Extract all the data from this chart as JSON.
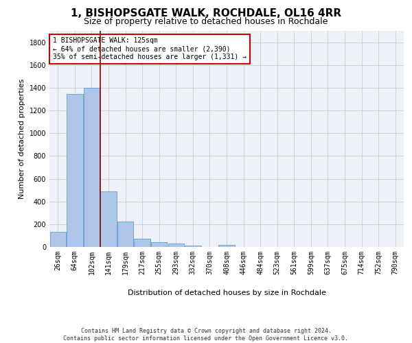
{
  "title": "1, BISHOPSGATE WALK, ROCHDALE, OL16 4RR",
  "subtitle": "Size of property relative to detached houses in Rochdale",
  "xlabel": "Distribution of detached houses by size in Rochdale",
  "ylabel": "Number of detached properties",
  "bar_color": "#aec6e8",
  "bar_edge_color": "#5a9fd4",
  "background_color": "#ffffff",
  "plot_bg_color": "#eef2f8",
  "grid_color": "#cccccc",
  "annotation_box_color": "#cc0000",
  "vline_color": "#8b0000",
  "categories": [
    "26sqm",
    "64sqm",
    "102sqm",
    "141sqm",
    "179sqm",
    "217sqm",
    "255sqm",
    "293sqm",
    "332sqm",
    "370sqm",
    "408sqm",
    "446sqm",
    "484sqm",
    "523sqm",
    "561sqm",
    "599sqm",
    "637sqm",
    "675sqm",
    "714sqm",
    "752sqm",
    "790sqm"
  ],
  "values": [
    135,
    1345,
    1400,
    490,
    225,
    75,
    45,
    28,
    15,
    0,
    20,
    0,
    0,
    0,
    0,
    0,
    0,
    0,
    0,
    0,
    0
  ],
  "ylim": [
    0,
    1900
  ],
  "yticks": [
    0,
    200,
    400,
    600,
    800,
    1000,
    1200,
    1400,
    1600,
    1800
  ],
  "vline_pos": 2.5,
  "annotation_text": "1 BISHOPSGATE WALK: 125sqm\n← 64% of detached houses are smaller (2,390)\n35% of semi-detached houses are larger (1,331) →",
  "footer": "Contains HM Land Registry data © Crown copyright and database right 2024.\nContains public sector information licensed under the Open Government Licence v3.0.",
  "title_fontsize": 11,
  "subtitle_fontsize": 9,
  "tick_fontsize": 7,
  "ylabel_fontsize": 8,
  "xlabel_fontsize": 8,
  "annotation_fontsize": 7,
  "footer_fontsize": 6
}
